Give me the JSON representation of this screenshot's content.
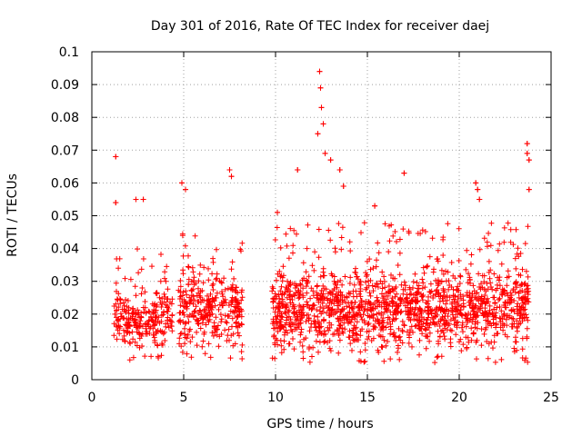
{
  "chart_data": {
    "type": "scatter",
    "title": "Day 301 of 2016, Rate Of TEC Index for receiver daej",
    "xlabel": "GPS time / hours",
    "ylabel": "ROTI / TECUs",
    "xlim": [
      0,
      25
    ],
    "ylim": [
      0,
      0.1
    ],
    "x_ticks": [
      0,
      5,
      10,
      15,
      20,
      25
    ],
    "x_tick_labels": [
      "0",
      "5",
      "10",
      "15",
      "20",
      "25"
    ],
    "y_ticks": [
      0,
      0.01,
      0.02,
      0.03,
      0.04,
      0.05,
      0.06,
      0.07,
      0.08,
      0.09,
      0.1
    ],
    "y_tick_labels": [
      "0",
      "0.01",
      "0.02",
      "0.03",
      "0.04",
      "0.05",
      "0.06",
      "0.07",
      "0.08",
      "0.09",
      "0.1"
    ],
    "grid": true,
    "marker": "+",
    "series": [
      {
        "name": "ROTI",
        "color": "#ff0000",
        "clusters": [
          {
            "x_start": 1.2,
            "x_end": 4.4,
            "y_low": 0.006,
            "y_high": 0.04,
            "density": 260
          },
          {
            "x_start": 4.7,
            "x_end": 8.2,
            "y_low": 0.006,
            "y_high": 0.046,
            "density": 320
          },
          {
            "x_start": 9.8,
            "x_end": 23.8,
            "y_low": 0.005,
            "y_high": 0.048,
            "density": 1500
          }
        ],
        "notable_points": [
          {
            "x": 1.3,
            "y": 0.068
          },
          {
            "x": 1.3,
            "y": 0.054
          },
          {
            "x": 2.4,
            "y": 0.055
          },
          {
            "x": 2.8,
            "y": 0.055
          },
          {
            "x": 4.9,
            "y": 0.06
          },
          {
            "x": 5.1,
            "y": 0.058
          },
          {
            "x": 7.5,
            "y": 0.064
          },
          {
            "x": 7.6,
            "y": 0.062
          },
          {
            "x": 10.1,
            "y": 0.051
          },
          {
            "x": 11.2,
            "y": 0.064
          },
          {
            "x": 12.3,
            "y": 0.075
          },
          {
            "x": 12.4,
            "y": 0.094
          },
          {
            "x": 12.45,
            "y": 0.089
          },
          {
            "x": 12.5,
            "y": 0.083
          },
          {
            "x": 12.6,
            "y": 0.078
          },
          {
            "x": 12.7,
            "y": 0.069
          },
          {
            "x": 13.0,
            "y": 0.067
          },
          {
            "x": 13.5,
            "y": 0.064
          },
          {
            "x": 13.7,
            "y": 0.059
          },
          {
            "x": 15.4,
            "y": 0.053
          },
          {
            "x": 17.0,
            "y": 0.063
          },
          {
            "x": 20.9,
            "y": 0.06
          },
          {
            "x": 21.0,
            "y": 0.058
          },
          {
            "x": 21.1,
            "y": 0.055
          },
          {
            "x": 23.7,
            "y": 0.072
          },
          {
            "x": 23.7,
            "y": 0.069
          },
          {
            "x": 23.8,
            "y": 0.067
          },
          {
            "x": 23.8,
            "y": 0.058
          }
        ]
      }
    ]
  }
}
